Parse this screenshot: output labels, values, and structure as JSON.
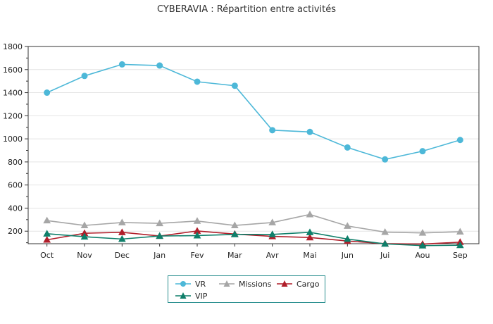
{
  "chart_data": {
    "type": "line",
    "title": "CYBERAVIA : Répartition entre activités",
    "xlabel": "",
    "ylabel": "",
    "categories": [
      "Oct",
      "Nov",
      "Dec",
      "Jan",
      "Fev",
      "Mar",
      "Avr",
      "Mai",
      "Jun",
      "Jui",
      "Aou",
      "Sep"
    ],
    "ylim": [
      0,
      1800
    ],
    "yticks": [
      200,
      400,
      600,
      800,
      1000,
      1200,
      1400,
      1600,
      1800
    ],
    "grid": true,
    "legend_position": "bottom",
    "series": [
      {
        "name": "VR",
        "color": "#4db8d8",
        "marker": "circle",
        "values": [
          1400,
          1545,
          1645,
          1635,
          1495,
          1460,
          1075,
          1060,
          925,
          822,
          893,
          990
        ]
      },
      {
        "name": "Missions",
        "color": "#a6a6a6",
        "marker": "triangle",
        "values": [
          292,
          250,
          275,
          268,
          288,
          250,
          275,
          345,
          245,
          192,
          185,
          195
        ]
      },
      {
        "name": "Cargo",
        "color": "#b01e2a",
        "marker": "triangle",
        "values": [
          125,
          182,
          190,
          158,
          202,
          175,
          155,
          145,
          115,
          92,
          88,
          105
        ]
      },
      {
        "name": "VIP",
        "color": "#0f7f6a",
        "marker": "triangle",
        "values": [
          178,
          152,
          132,
          158,
          162,
          172,
          172,
          190,
          132,
          90,
          75,
          78
        ]
      }
    ]
  }
}
